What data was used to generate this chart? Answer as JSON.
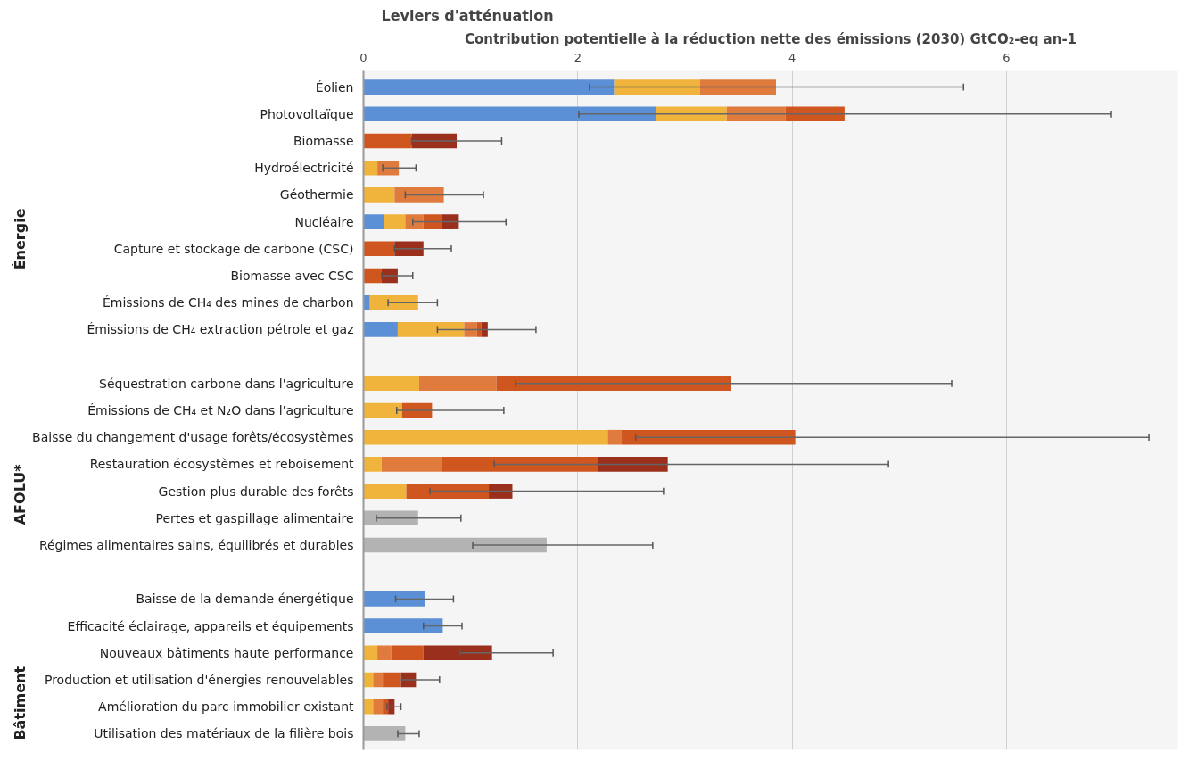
{
  "chart_data": {
    "type": "bar",
    "orientation": "horizontal",
    "stacked": true,
    "xlabel": "Contribution potentielle à la réduction nette des émissions (2030) GtCO₂-eq an-1",
    "ylabel": "Leviers d'atténuation",
    "annotations": [
      "Énergie",
      "AFOLU*",
      "Bâtiment"
    ],
    "categories": [
      "Éolien",
      "Photovoltaïque",
      "Biomasse",
      "Hydroélectricité",
      "Géothermie",
      "Nucléaire",
      "Capture et stockage de carbone (CSC)",
      "Biomasse avec CSC",
      "Émissions de CH₄ des mines de charbon",
      "Émissions de CH₄ extraction pétrole et gaz",
      null,
      "Séquestration carbone dans l'agriculture",
      "Émissions de CH₄ et N₂O dans l'agriculture",
      "Baisse du changement d'usage forêts/écosystèmes",
      "Restauration écosystèmes et reboisement",
      "Gestion plus durable des forêts",
      "Pertes et gaspillage alimentaire",
      "Régimes alimentaires sains, équilibrés et durables",
      null,
      "Baisse de la demande énergétique",
      "Efficacité éclairage, appareils et équipements",
      "Nouveaux bâtiments haute performance",
      "Production et utilisation d'énergies renouvelables",
      "Amélioration du parc immobilier existant",
      "Utilisation des matériaux de la filière bois"
    ],
    "series": [
      {
        "color": "#5b8fd6",
        "values": [
          2.34,
          2.73,
          null,
          null,
          null,
          0.19,
          null,
          null,
          0.06,
          0.32,
          null,
          null,
          null,
          null,
          null,
          null,
          null,
          null,
          null,
          0.57,
          0.74,
          null,
          null,
          null,
          null
        ],
        "errors": [
          null,
          null,
          null,
          null,
          null,
          null,
          null,
          null,
          null,
          null,
          null,
          null,
          null,
          null,
          null,
          null,
          null,
          null,
          null,
          [
            0.3,
            0.84
          ],
          [
            0.56,
            0.92
          ],
          null,
          null,
          null,
          null
        ]
      },
      {
        "color": "#f0b43c",
        "values": [
          0.8,
          0.66,
          null,
          0.13,
          0.29,
          0.2,
          null,
          null,
          0.45,
          0.62,
          null,
          0.52,
          0.36,
          2.28,
          0.17,
          0.4,
          null,
          null,
          null,
          null,
          null,
          0.13,
          0.09,
          0.09,
          null
        ],
        "errors": [
          null,
          null,
          null,
          null,
          null,
          null,
          null,
          null,
          [
            0.23,
            0.69
          ],
          null,
          null,
          null,
          null,
          null,
          null,
          null,
          null,
          null,
          null,
          null,
          null,
          null,
          null,
          null,
          null
        ]
      },
      {
        "color": "#e07b3e",
        "values": [
          0.71,
          0.55,
          null,
          0.2,
          0.46,
          0.17,
          null,
          null,
          null,
          0.12,
          null,
          0.72,
          null,
          0.13,
          0.56,
          null,
          null,
          null,
          null,
          null,
          null,
          0.13,
          0.09,
          0.09,
          null
        ],
        "errors": [
          [
            2.11,
            5.6
          ],
          null,
          null,
          [
            0.18,
            0.49
          ],
          [
            0.39,
            1.12
          ],
          null,
          null,
          null,
          null,
          null,
          null,
          null,
          null,
          null,
          null,
          null,
          null,
          null,
          null,
          null,
          null,
          null,
          null,
          null,
          null
        ]
      },
      {
        "color": "#d0561f",
        "values": [
          null,
          0.55,
          0.45,
          null,
          null,
          0.17,
          0.29,
          0.17,
          null,
          0.04,
          null,
          2.19,
          0.28,
          1.62,
          1.46,
          0.77,
          null,
          null,
          null,
          null,
          null,
          0.3,
          0.17,
          0.05,
          null
        ],
        "errors": [
          null,
          [
            2.01,
            6.98
          ],
          null,
          null,
          null,
          null,
          null,
          null,
          null,
          null,
          null,
          [
            1.42,
            5.49
          ],
          [
            0.31,
            1.31
          ],
          [
            2.54,
            7.33
          ],
          null,
          null,
          null,
          null,
          null,
          null,
          null,
          null,
          null,
          null,
          null
        ]
      },
      {
        "color": "#9a2f1c",
        "values": [
          null,
          null,
          0.42,
          null,
          null,
          0.16,
          0.27,
          0.15,
          null,
          0.06,
          null,
          null,
          null,
          null,
          0.65,
          0.22,
          null,
          null,
          null,
          null,
          null,
          0.64,
          0.14,
          0.06,
          null
        ],
        "errors": [
          null,
          null,
          [
            0.45,
            1.29
          ],
          null,
          null,
          [
            0.46,
            1.33
          ],
          [
            0.29,
            0.82
          ],
          [
            0.17,
            0.46
          ],
          null,
          [
            0.69,
            1.61
          ],
          null,
          null,
          null,
          null,
          [
            1.22,
            4.9
          ],
          [
            0.62,
            2.8
          ],
          null,
          null,
          null,
          null,
          null,
          [
            0.9,
            1.77
          ],
          [
            0.36,
            0.71
          ],
          [
            0.22,
            0.35
          ],
          null
        ]
      },
      {
        "color": "#b3b3b3",
        "values": [
          null,
          null,
          null,
          null,
          null,
          null,
          null,
          null,
          null,
          null,
          null,
          null,
          null,
          null,
          null,
          null,
          0.51,
          1.71,
          null,
          null,
          null,
          null,
          null,
          null,
          0.39
        ],
        "errors": [
          null,
          null,
          null,
          null,
          null,
          null,
          null,
          null,
          null,
          null,
          null,
          null,
          null,
          null,
          null,
          null,
          [
            0.12,
            0.91
          ],
          [
            1.02,
            2.7
          ],
          null,
          null,
          null,
          null,
          null,
          null,
          [
            0.32,
            0.52
          ]
        ]
      }
    ],
    "xlim": [
      0,
      7.6
    ],
    "xticks": [
      0,
      2,
      4,
      6
    ],
    "grid": "x"
  }
}
